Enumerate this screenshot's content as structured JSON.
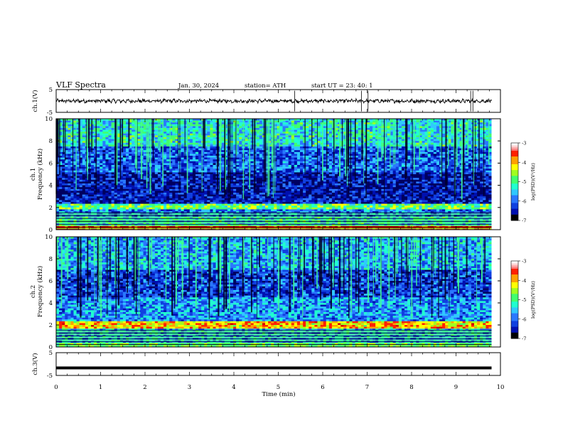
{
  "header": {
    "title": "VLF  Spectra",
    "date": "Jan. 30, 2024",
    "station": "station= ATH",
    "start": "start  UT  =   23: 40: 1"
  },
  "colors": {
    "colormap": [
      "#000000",
      "#000060",
      "#0010b0",
      "#1040e0",
      "#2a78ff",
      "#30c8ff",
      "#20ffd0",
      "#40ff70",
      "#a0ff20",
      "#ffff00",
      "#ffa000",
      "#ff2000",
      "#d00000",
      "#ffd0d0",
      "#ffffff"
    ],
    "trace": "#000000"
  },
  "chart_data": [
    {
      "id": "ch1_wave",
      "type": "line",
      "ylabel": "ch.1(V)",
      "ylim": [
        -5,
        5
      ],
      "yticks": [
        "5",
        "-5"
      ],
      "xlim": [
        0,
        10
      ],
      "spikes_min": [
        5.37,
        6.87,
        7.02,
        9.33,
        9.38
      ],
      "baseline_v": 0
    },
    {
      "id": "ch1_spec",
      "type": "heatmap",
      "ylabel": "ch.1\nFrequency (kHz)",
      "ylim": [
        0,
        10
      ],
      "yticks": [
        "0",
        "2",
        "4",
        "6",
        "8",
        "10"
      ],
      "xlim": [
        0,
        10
      ],
      "data_end_min": 9.8,
      "colorbar": {
        "label": "log(PSD)(V²/Hz)",
        "range": [
          -7,
          -3
        ],
        "ticks": [
          "-3",
          "-4",
          "-5",
          "-6",
          "-7"
        ]
      },
      "bands_khz": [
        {
          "from": 0,
          "to": 0.3,
          "level": -3.2
        },
        {
          "from": 0.3,
          "to": 1.2,
          "level": -5.3
        },
        {
          "from": 1.2,
          "to": 1.9,
          "level": -5.8
        },
        {
          "from": 1.9,
          "to": 2.4,
          "level": -4.8
        },
        {
          "from": 2.4,
          "to": 5.2,
          "level": -6.5
        },
        {
          "from": 5.2,
          "to": 7.5,
          "level": -6.0
        },
        {
          "from": 7.5,
          "to": 10,
          "level": -5.3
        }
      ]
    },
    {
      "id": "ch2_spec",
      "type": "heatmap",
      "ylabel": "ch.2\nFrequency (kHz)",
      "ylim": [
        0,
        10
      ],
      "yticks": [
        "0",
        "2",
        "4",
        "6",
        "8",
        "10"
      ],
      "xlim": [
        0,
        10
      ],
      "data_end_min": 9.8,
      "colorbar": {
        "label": "log(PSD)(V²/Hz)",
        "range": [
          -7,
          -3
        ],
        "ticks": [
          "-3",
          "-4",
          "-5",
          "-6",
          "-7"
        ]
      },
      "bands_khz": [
        {
          "from": 0,
          "to": 0.4,
          "level": -4.8
        },
        {
          "from": 0.4,
          "to": 1.6,
          "level": -5.6
        },
        {
          "from": 1.6,
          "to": 2.3,
          "level": -4.0
        },
        {
          "from": 2.3,
          "to": 4.5,
          "level": -5.7
        },
        {
          "from": 4.5,
          "to": 7.0,
          "level": -6.2
        },
        {
          "from": 7.0,
          "to": 10,
          "level": -5.6
        }
      ]
    },
    {
      "id": "ch3_wave",
      "type": "line",
      "ylabel": "ch.3(V)",
      "ylim": [
        -5,
        5
      ],
      "yticks": [
        "5",
        "-5"
      ],
      "xlim": [
        0,
        10
      ],
      "baseline_v": -1.7
    }
  ],
  "xaxis": {
    "label": "Time  (min)",
    "ticks": [
      "0",
      "1",
      "2",
      "3",
      "4",
      "5",
      "6",
      "7",
      "8",
      "9",
      "10"
    ]
  }
}
